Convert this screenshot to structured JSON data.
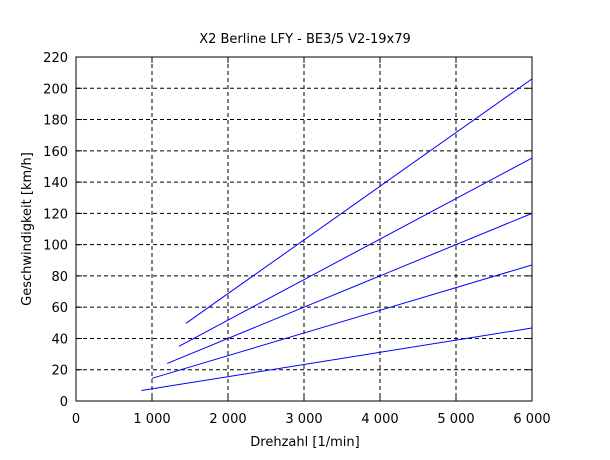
{
  "chart_data": {
    "type": "line",
    "title": "X2 Berline LFY - BE3/5 V2-19x79",
    "x_label": "Drehzahl [1/min]",
    "y_label": "Geschwindigkeit [km/h]",
    "series": [
      {
        "x": [
          860,
          6000
        ],
        "values": [
          6.7,
          46.7
        ],
        "color": "#0000ff"
      },
      {
        "x": [
          1000,
          6000
        ],
        "values": [
          14.5,
          87
        ],
        "color": "#0000ff"
      },
      {
        "x": [
          1200,
          6000
        ],
        "values": [
          24,
          120
        ],
        "color": "#0000ff"
      },
      {
        "x": [
          1355,
          6000
        ],
        "values": [
          35,
          155.4
        ],
        "color": "#0000ff"
      },
      {
        "x": [
          1447,
          6000
        ],
        "values": [
          49.7,
          206
        ],
        "color": "#0000ff"
      }
    ],
    "xlim": [
      0,
      6000
    ],
    "xticks": [
      0,
      {
        "value": 1000,
        "label": "1 000"
      },
      {
        "value": 2000,
        "label": "2 000"
      },
      {
        "value": 3000,
        "label": "3 000"
      },
      {
        "value": 4000,
        "label": "4 000"
      },
      {
        "value": 5000,
        "label": "5 000"
      },
      {
        "value": 6000,
        "label": "6 000"
      }
    ],
    "ylim": [
      0,
      220
    ],
    "yticks": [
      0,
      20,
      40,
      60,
      80,
      100,
      120,
      140,
      160,
      180,
      200,
      220
    ],
    "grid": true
  }
}
